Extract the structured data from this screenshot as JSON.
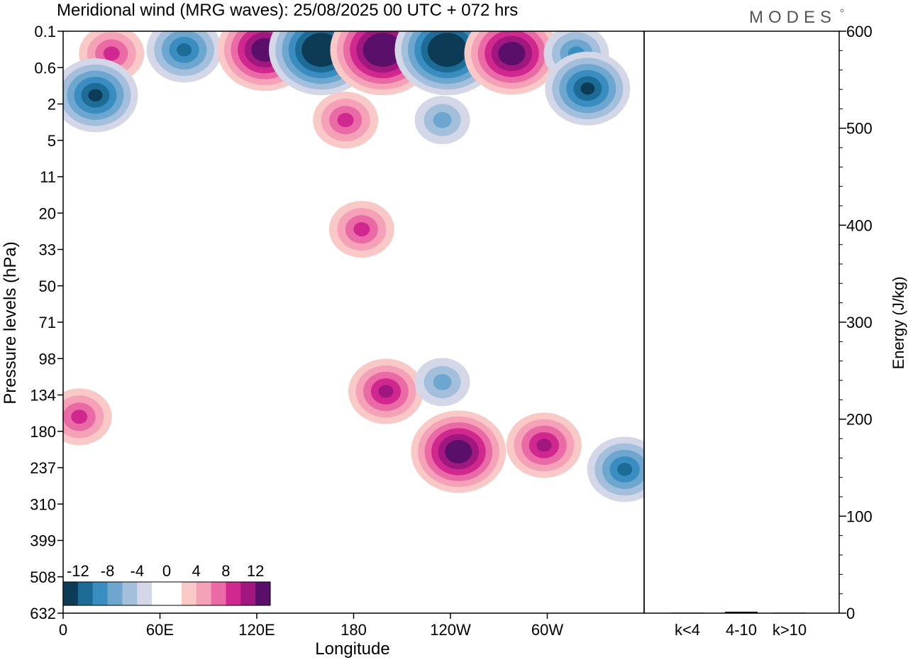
{
  "header": {
    "title": "Meridional wind (MRG waves):  25/08/2025  00 UTC  + 072 hrs",
    "logo_text": "MODES"
  },
  "chart_data": [
    {
      "type": "heatmap",
      "title": "Meridional wind (MRG waves):  25/08/2025  00 UTC  + 072 hrs",
      "xlabel": "Longitude",
      "ylabel": "Pressure levels (hPa)",
      "x_ticks": [
        "0",
        "60E",
        "120E",
        "180",
        "120W",
        "60W"
      ],
      "x_tick_degrees": [
        0,
        60,
        120,
        180,
        240,
        300
      ],
      "xlim": [
        0,
        360
      ],
      "y_ticks": [
        "0.1",
        "0.6",
        "2",
        "5",
        "11",
        "20",
        "33",
        "50",
        "71",
        "98",
        "134",
        "180",
        "237",
        "310",
        "399",
        "508",
        "632"
      ],
      "colorbar": {
        "tick_labels": [
          "-12",
          "-8",
          "-4",
          "0",
          "4",
          "8",
          "12"
        ],
        "colors": [
          "#0d3b55",
          "#1d6b97",
          "#3a8dc0",
          "#6da6cf",
          "#a3bfdc",
          "#d3d7e7",
          "#ffffff",
          "#ffffff",
          "#f9c9c7",
          "#f5a1b8",
          "#ea6aa6",
          "#d0288f",
          "#a0177f",
          "#5a0f6a"
        ]
      },
      "features": [
        {
          "label": "positive",
          "lon": 30,
          "level": 0.3,
          "value": 7
        },
        {
          "label": "negative",
          "lon": 75,
          "level": 0.25,
          "value": -9
        },
        {
          "label": "positive",
          "lon": 125,
          "level": 0.25,
          "value": 14
        },
        {
          "label": "negative",
          "lon": 160,
          "level": 0.25,
          "value": -15
        },
        {
          "label": "positive",
          "lon": 198,
          "level": 0.25,
          "value": 15
        },
        {
          "label": "negative",
          "lon": 238,
          "level": 0.25,
          "value": -15
        },
        {
          "label": "positive",
          "lon": 278,
          "level": 0.3,
          "value": 14
        },
        {
          "label": "negative",
          "lon": 318,
          "level": 0.3,
          "value": -8
        },
        {
          "label": "negative",
          "lon": 20,
          "level": 1.5,
          "value": -12
        },
        {
          "label": "negative",
          "lon": 325,
          "level": 1.2,
          "value": -12
        },
        {
          "label": "positive",
          "lon": 175,
          "level": 3,
          "value": 8
        },
        {
          "label": "negative",
          "lon": 235,
          "level": 3,
          "value": -5
        },
        {
          "label": "positive",
          "lon": 185,
          "level": 25,
          "value": 7
        },
        {
          "label": "positive",
          "lon": 200,
          "level": 130,
          "value": 10
        },
        {
          "label": "positive",
          "lon": 245,
          "level": 210,
          "value": 13
        },
        {
          "label": "positive",
          "lon": 10,
          "level": 160,
          "value": 8
        },
        {
          "label": "positive",
          "lon": 298,
          "level": 200,
          "value": 9
        },
        {
          "label": "negative",
          "lon": 348,
          "level": 240,
          "value": -9
        },
        {
          "label": "negative",
          "lon": 235,
          "level": 120,
          "value": -5
        }
      ]
    },
    {
      "type": "bar",
      "ylabel": "Energy (J/kg)",
      "ylim": [
        0,
        600
      ],
      "y_ticks": [
        "0",
        "100",
        "200",
        "300",
        "400",
        "500",
        "600"
      ],
      "categories": [
        "k<4",
        "4-10",
        "k>10"
      ],
      "values": [
        0.5,
        1.5,
        0.5
      ]
    }
  ]
}
